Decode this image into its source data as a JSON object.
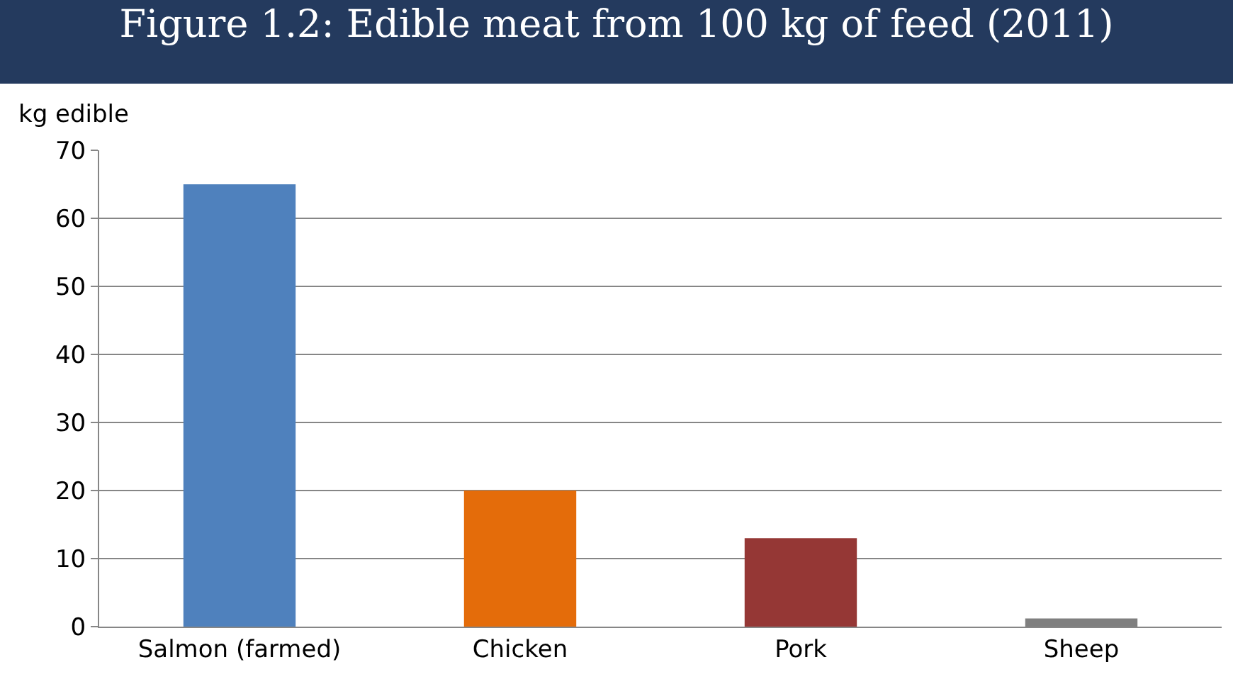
{
  "chart_data": {
    "type": "bar",
    "title": "Figure 1.2: Edible meat from 100 kg of feed (2011)",
    "ylabel": "kg edible",
    "categories": [
      "Salmon (farmed)",
      "Chicken",
      "Pork",
      "Sheep"
    ],
    "values": [
      65,
      20,
      13,
      1.2
    ],
    "colors": [
      "#4f81bd",
      "#e46c0a",
      "#953735",
      "#7f7f7f"
    ],
    "ylim": [
      0,
      70
    ],
    "yticks": [
      0,
      10,
      20,
      30,
      40,
      50,
      60,
      70
    ],
    "grid": "y",
    "legend": false
  }
}
